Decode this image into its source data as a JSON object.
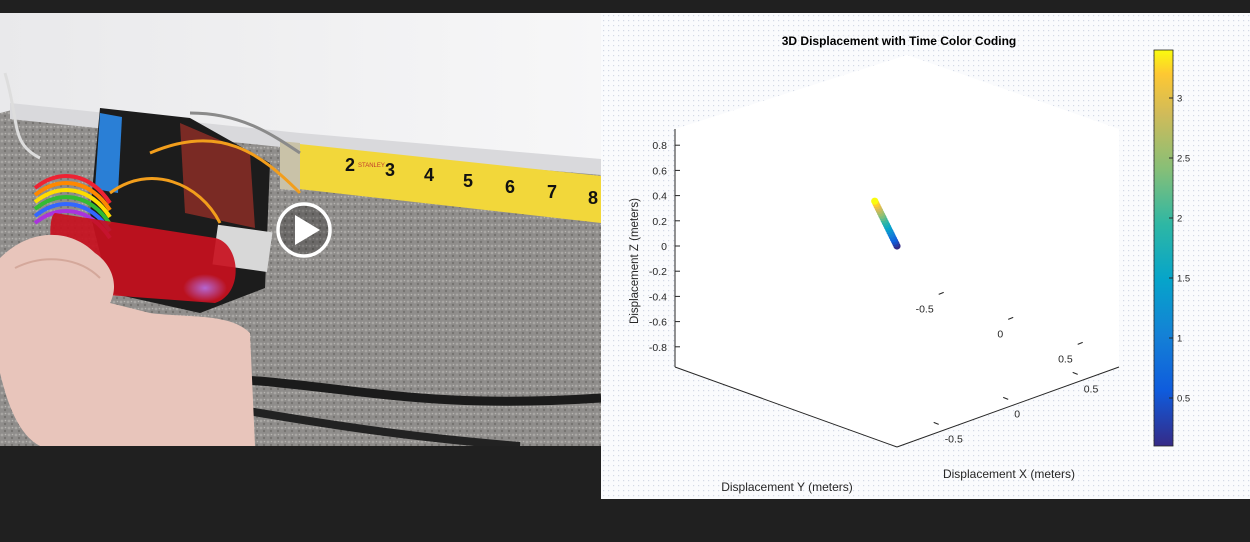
{
  "video": {
    "play_button_icon": "play-icon",
    "tape_numbers": [
      "2",
      "3",
      "4",
      "5",
      "6",
      "7",
      "8"
    ],
    "tape_brand": "STANLEY"
  },
  "chart_data": {
    "type": "scatter3d",
    "title": "3D Displacement with Time Color Coding",
    "xlabel": "Displacement X (meters)",
    "ylabel": "Displacement Y (meters)",
    "zlabel": "Displacement Z (meters)",
    "xticks": [
      "0.5",
      "0",
      "-0.5"
    ],
    "yticks": [
      "-0.5",
      "0",
      "0.5"
    ],
    "zticks": [
      "0.8",
      "0.6",
      "0.4",
      "0.2",
      "0",
      "-0.2",
      "-0.4",
      "-0.6",
      "-0.8"
    ],
    "colorbar_ticks": [
      "3",
      "2.5",
      "2",
      "1.5",
      "1",
      "0.5"
    ],
    "colormap": "parula",
    "colorbar_range": [
      0.1,
      3.4
    ],
    "series": [
      {
        "t_start": 0.1,
        "t_end": 3.4,
        "points": 20,
        "start": {
          "x": 0,
          "y": 0,
          "z": 0
        },
        "end": {
          "x": -0.01,
          "y": -0.15,
          "z": 0.3
        }
      }
    ]
  }
}
